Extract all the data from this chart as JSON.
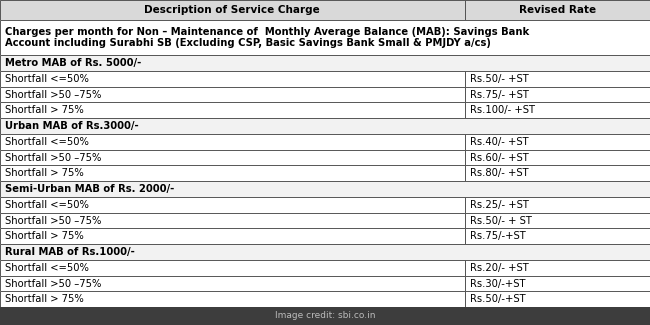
{
  "col_header": [
    "Description of Service Charge",
    "Revised Rate"
  ],
  "intro_row": "Charges per month for Non – Maintenance of  Monthly Average Balance (MAB): Savings Bank\nAccount including Surabhi SB (Excluding CSP, Basic Savings Bank Small & PMJDY a/cs)",
  "sections": [
    {
      "header": "Metro MAB of Rs. 5000/-",
      "rows": [
        [
          "Shortfall <=50%",
          "Rs.50/- +ST"
        ],
        [
          "Shortfall >50 –75%",
          "Rs.75/- +ST"
        ],
        [
          "Shortfall > 75%",
          "Rs.100/- +ST"
        ]
      ]
    },
    {
      "header": "Urban MAB of Rs.3000/-",
      "rows": [
        [
          "Shortfall <=50%",
          "Rs.40/- +ST"
        ],
        [
          "Shortfall >50 –75%",
          "Rs.60/- +ST"
        ],
        [
          "Shortfall > 75%",
          "Rs.80/- +ST"
        ]
      ]
    },
    {
      "header": "Semi-Urban MAB of Rs. 2000/-",
      "rows": [
        [
          "Shortfall <=50%",
          "Rs.25/- +ST"
        ],
        [
          "Shortfall >50 –75%",
          "Rs.50/- + ST"
        ],
        [
          "Shortfall > 75%",
          "Rs.75/-+ST"
        ]
      ]
    },
    {
      "header": "Rural MAB of Rs.1000/-",
      "rows": [
        [
          "Shortfall <=50%",
          "Rs.20/- +ST"
        ],
        [
          "Shortfall >50 –75%",
          "Rs.30/-+ST"
        ],
        [
          "Shortfall > 75%",
          "Rs.50/-+ST"
        ]
      ]
    }
  ],
  "footer": "Image credit: sbi.co.in",
  "bg_color": "#ffffff",
  "header_bg": "#d9d9d9",
  "section_bg": "#f2f2f2",
  "border_color": "#555555",
  "footer_bg": "#3d3d3d",
  "footer_text_color": "#bbbbbb",
  "col_split": 0.715,
  "font_size_header": 7.5,
  "font_size_body": 7.2,
  "font_size_intro": 7.2,
  "font_size_footer": 6.5,
  "fig_width": 6.5,
  "fig_height": 3.25,
  "dpi": 100
}
